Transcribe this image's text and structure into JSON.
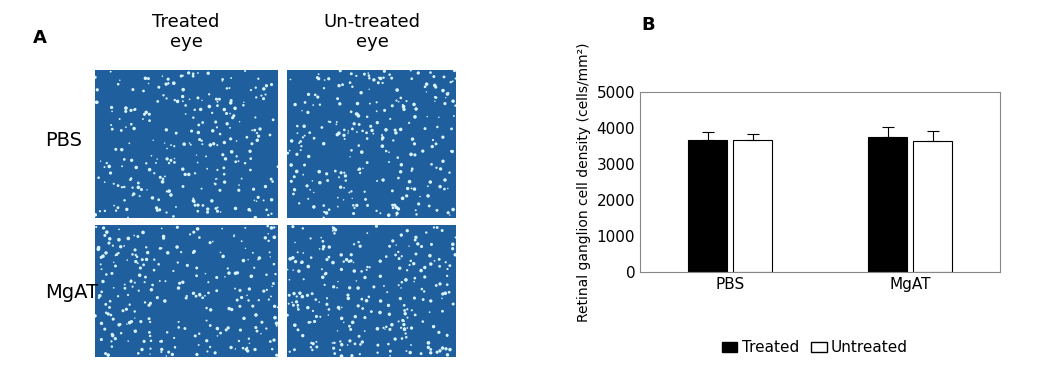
{
  "panel_a": {
    "label": "A",
    "column_headers": [
      "Treated\neye",
      "Un-treated\neye"
    ],
    "row_labels": [
      "PBS",
      "MgAT"
    ]
  },
  "chart_data": {
    "type": "bar",
    "panel_label": "B",
    "categories": [
      "PBS",
      "MgAT"
    ],
    "y_label": "Retinal ganglion cell density (cells/mm²)",
    "series": [
      {
        "name": "Treated",
        "color": "#000000",
        "values": [
          3680,
          3750
        ],
        "errors": [
          220,
          290
        ]
      },
      {
        "name": "Untreated",
        "color": "#ffffff",
        "values": [
          3680,
          3650
        ],
        "errors": [
          150,
          270
        ]
      }
    ],
    "ylim": [
      0,
      5000
    ],
    "yticks": [
      0,
      1000,
      2000,
      3000,
      4000,
      5000
    ],
    "grid": false,
    "legend": "lower center"
  }
}
